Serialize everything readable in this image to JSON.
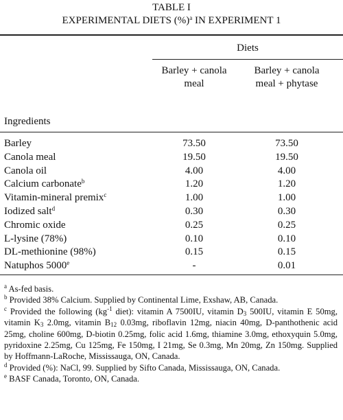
{
  "title": {
    "label": "TABLE I",
    "caption": "EXPERIMENTAL DIETS (%)",
    "note": "a",
    "caption_end": " IN EXPERIMENT 1"
  },
  "table": {
    "group_header": "Diets",
    "columns": [
      "Barley + canola meal",
      "Barley + canola meal + phytase"
    ],
    "row_header": "Ingredients",
    "rows": [
      {
        "ingredient": "Barley",
        "values": [
          "73.50",
          "73.50"
        ]
      },
      {
        "ingredient": "Canola meal",
        "values": [
          "19.50",
          "19.50"
        ]
      },
      {
        "ingredient": "Canola oil",
        "values": [
          "4.00",
          "4.00"
        ]
      },
      {
        "ingredient": "Calcium carbonate",
        "note": "b",
        "values": [
          "1.20",
          "1.20"
        ]
      },
      {
        "ingredient": "Vitamin-mineral premix",
        "note": "c",
        "values": [
          "1.00",
          "1.00"
        ]
      },
      {
        "ingredient": "Iodized salt",
        "note": "d",
        "values": [
          "0.30",
          "0.30"
        ]
      },
      {
        "ingredient": "Chromic oxide",
        "values": [
          "0.25",
          "0.25"
        ]
      },
      {
        "ingredient": "L-lysine (78%)",
        "values": [
          "0.10",
          "0.10"
        ]
      },
      {
        "ingredient": "DL-methionine (98%)",
        "values": [
          "0.15",
          "0.15"
        ]
      },
      {
        "ingredient": "Natuphos 5000",
        "note": "e",
        "values": [
          "-",
          "0.01"
        ]
      }
    ]
  },
  "footnotes": [
    {
      "mark": "a",
      "text": "As-fed basis."
    },
    {
      "mark": "b",
      "text": "Provided 38% Calcium. Supplied by Continental Lime, Exshaw, AB, Canada."
    },
    {
      "mark": "c",
      "parts": [
        "Provided the following (kg",
        "-1",
        " diet): vitamin A 7500IU, vitamin D",
        "3",
        " 500IU, vitamin E 50mg, vitamin K",
        "3",
        " 2.0mg, vitamin B",
        "12",
        " 0.03mg, riboflavin 12mg, niacin 40mg, D-panthothenic acid 25mg, choline 600mg, D-biotin 0.25mg, folic acid 1.6mg, thiamine 3.0mg, ethoxyquin 5.0mg, pyridoxine 2.25mg, Cu 125mg, Fe 150mg, I 21mg, Se 0.3mg, Mn 20mg, Zn 150mg. Supplied by Hoffmann-LaRoche, Mississauga, ON, Canada."
      ]
    },
    {
      "mark": "d",
      "text": "Provided (%): NaCl, 99. Supplied by Sifto Canada, Mississauga, ON, Canada."
    },
    {
      "mark": "e",
      "text": "BASF Canada, Toronto, ON, Canada."
    }
  ]
}
